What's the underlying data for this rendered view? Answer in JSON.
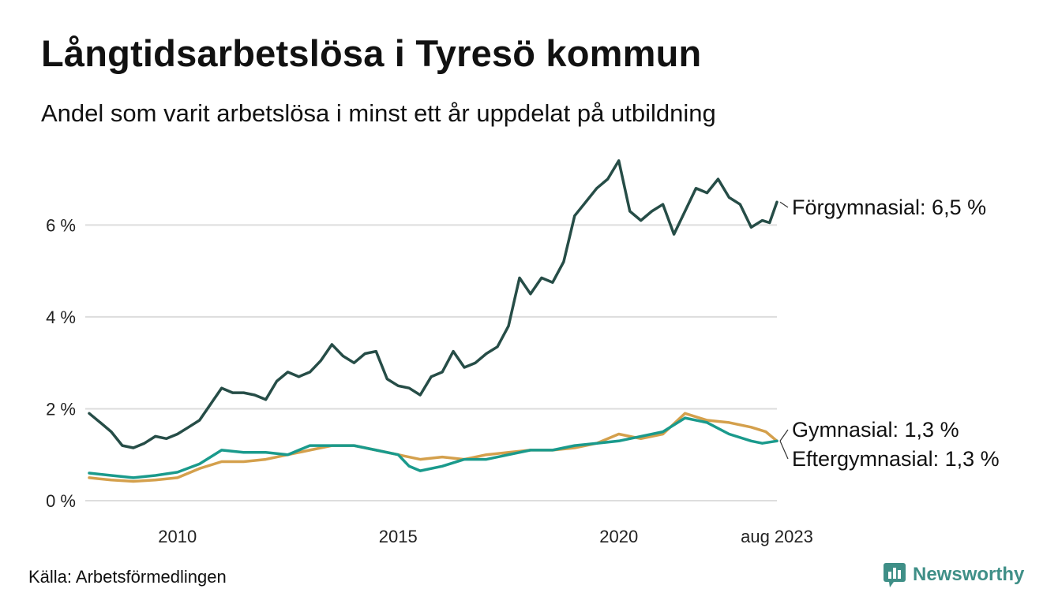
{
  "title": "Långtidsarbetslösa i Tyresö kommun",
  "subtitle": "Andel som varit arbetslösa i minst ett år uppdelat på utbildning",
  "source": "Källa: Arbetsförmedlingen",
  "brand": {
    "name": "Newsworthy",
    "icon": "newsworthy-logo-icon",
    "color": "#3f8f87"
  },
  "chart_data": {
    "type": "line",
    "title": "Långtidsarbetslösa i Tyresö kommun",
    "subtitle": "Andel som varit arbetslösa i minst ett år uppdelat på utbildning",
    "xlabel": "",
    "ylabel": "",
    "x_range": [
      "2008-01",
      "2023-08"
    ],
    "ylim": [
      0,
      7.5
    ],
    "y_ticks": [
      {
        "value": 0,
        "label": "0 %"
      },
      {
        "value": 2,
        "label": "2 %"
      },
      {
        "value": 4,
        "label": "4 %"
      },
      {
        "value": 6,
        "label": "6 %"
      }
    ],
    "x_ticks": [
      {
        "date": "2010-01",
        "label": "2010"
      },
      {
        "date": "2015-01",
        "label": "2015"
      },
      {
        "date": "2020-01",
        "label": "2020"
      },
      {
        "date": "2023-08",
        "label": "aug 2023"
      }
    ],
    "grid": "horizontal",
    "legend": "direct labels at line ends",
    "series": [
      {
        "name": "Förgymnasial",
        "end_label": "Förgymnasial: 6,5 %",
        "color": "#264d47",
        "points": [
          [
            "2008-01",
            1.9
          ],
          [
            "2008-04",
            1.7
          ],
          [
            "2008-07",
            1.5
          ],
          [
            "2008-10",
            1.2
          ],
          [
            "2009-01",
            1.15
          ],
          [
            "2009-04",
            1.25
          ],
          [
            "2009-07",
            1.4
          ],
          [
            "2009-10",
            1.35
          ],
          [
            "2010-01",
            1.45
          ],
          [
            "2010-04",
            1.6
          ],
          [
            "2010-07",
            1.75
          ],
          [
            "2010-10",
            2.1
          ],
          [
            "2011-01",
            2.45
          ],
          [
            "2011-04",
            2.35
          ],
          [
            "2011-07",
            2.35
          ],
          [
            "2011-10",
            2.3
          ],
          [
            "2012-01",
            2.2
          ],
          [
            "2012-04",
            2.6
          ],
          [
            "2012-07",
            2.8
          ],
          [
            "2012-10",
            2.7
          ],
          [
            "2013-01",
            2.8
          ],
          [
            "2013-04",
            3.05
          ],
          [
            "2013-07",
            3.4
          ],
          [
            "2013-10",
            3.15
          ],
          [
            "2014-01",
            3.0
          ],
          [
            "2014-04",
            3.2
          ],
          [
            "2014-07",
            3.25
          ],
          [
            "2014-10",
            2.65
          ],
          [
            "2015-01",
            2.5
          ],
          [
            "2015-04",
            2.45
          ],
          [
            "2015-07",
            2.3
          ],
          [
            "2015-10",
            2.7
          ],
          [
            "2016-01",
            2.8
          ],
          [
            "2016-04",
            3.25
          ],
          [
            "2016-07",
            2.9
          ],
          [
            "2016-10",
            3.0
          ],
          [
            "2017-01",
            3.2
          ],
          [
            "2017-04",
            3.35
          ],
          [
            "2017-07",
            3.8
          ],
          [
            "2017-10",
            4.85
          ],
          [
            "2018-01",
            4.5
          ],
          [
            "2018-04",
            4.85
          ],
          [
            "2018-07",
            4.75
          ],
          [
            "2018-10",
            5.2
          ],
          [
            "2019-01",
            6.2
          ],
          [
            "2019-04",
            6.5
          ],
          [
            "2019-07",
            6.8
          ],
          [
            "2019-10",
            7.0
          ],
          [
            "2020-01",
            7.4
          ],
          [
            "2020-04",
            6.3
          ],
          [
            "2020-07",
            6.1
          ],
          [
            "2020-10",
            6.3
          ],
          [
            "2021-01",
            6.45
          ],
          [
            "2021-04",
            5.8
          ],
          [
            "2021-07",
            6.3
          ],
          [
            "2021-10",
            6.8
          ],
          [
            "2022-01",
            6.7
          ],
          [
            "2022-04",
            7.0
          ],
          [
            "2022-07",
            6.6
          ],
          [
            "2022-10",
            6.45
          ],
          [
            "2023-01",
            5.95
          ],
          [
            "2023-04",
            6.1
          ],
          [
            "2023-06",
            6.05
          ],
          [
            "2023-08",
            6.5
          ]
        ]
      },
      {
        "name": "Gymnasial",
        "end_label": "Gymnasial: 1,3 %",
        "color": "#1a9a8c",
        "points": [
          [
            "2008-01",
            0.6
          ],
          [
            "2008-07",
            0.55
          ],
          [
            "2009-01",
            0.5
          ],
          [
            "2009-07",
            0.55
          ],
          [
            "2010-01",
            0.62
          ],
          [
            "2010-07",
            0.8
          ],
          [
            "2011-01",
            1.1
          ],
          [
            "2011-07",
            1.05
          ],
          [
            "2012-01",
            1.05
          ],
          [
            "2012-07",
            1.0
          ],
          [
            "2013-01",
            1.2
          ],
          [
            "2013-07",
            1.2
          ],
          [
            "2014-01",
            1.2
          ],
          [
            "2014-07",
            1.1
          ],
          [
            "2015-01",
            1.0
          ],
          [
            "2015-04",
            0.75
          ],
          [
            "2015-07",
            0.65
          ],
          [
            "2016-01",
            0.75
          ],
          [
            "2016-07",
            0.9
          ],
          [
            "2017-01",
            0.9
          ],
          [
            "2017-07",
            1.0
          ],
          [
            "2018-01",
            1.1
          ],
          [
            "2018-07",
            1.1
          ],
          [
            "2019-01",
            1.2
          ],
          [
            "2019-07",
            1.25
          ],
          [
            "2020-01",
            1.3
          ],
          [
            "2020-07",
            1.4
          ],
          [
            "2021-01",
            1.5
          ],
          [
            "2021-07",
            1.8
          ],
          [
            "2022-01",
            1.7
          ],
          [
            "2022-07",
            1.45
          ],
          [
            "2023-01",
            1.3
          ],
          [
            "2023-04",
            1.25
          ],
          [
            "2023-08",
            1.3
          ]
        ]
      },
      {
        "name": "Eftergymnasial",
        "end_label": "Eftergymnasial: 1,3 %",
        "color": "#d4a04c",
        "points": [
          [
            "2008-01",
            0.5
          ],
          [
            "2008-07",
            0.45
          ],
          [
            "2009-01",
            0.42
          ],
          [
            "2009-07",
            0.45
          ],
          [
            "2010-01",
            0.5
          ],
          [
            "2010-07",
            0.7
          ],
          [
            "2011-01",
            0.85
          ],
          [
            "2011-07",
            0.85
          ],
          [
            "2012-01",
            0.9
          ],
          [
            "2012-07",
            1.0
          ],
          [
            "2013-01",
            1.1
          ],
          [
            "2013-07",
            1.2
          ],
          [
            "2014-01",
            1.2
          ],
          [
            "2014-07",
            1.1
          ],
          [
            "2015-01",
            1.0
          ],
          [
            "2015-07",
            0.9
          ],
          [
            "2016-01",
            0.95
          ],
          [
            "2016-07",
            0.9
          ],
          [
            "2017-01",
            1.0
          ],
          [
            "2017-07",
            1.05
          ],
          [
            "2018-01",
            1.1
          ],
          [
            "2018-07",
            1.1
          ],
          [
            "2019-01",
            1.15
          ],
          [
            "2019-07",
            1.25
          ],
          [
            "2020-01",
            1.45
          ],
          [
            "2020-07",
            1.35
          ],
          [
            "2021-01",
            1.45
          ],
          [
            "2021-07",
            1.9
          ],
          [
            "2022-01",
            1.75
          ],
          [
            "2022-07",
            1.7
          ],
          [
            "2023-01",
            1.6
          ],
          [
            "2023-05",
            1.5
          ],
          [
            "2023-08",
            1.3
          ]
        ]
      }
    ]
  }
}
